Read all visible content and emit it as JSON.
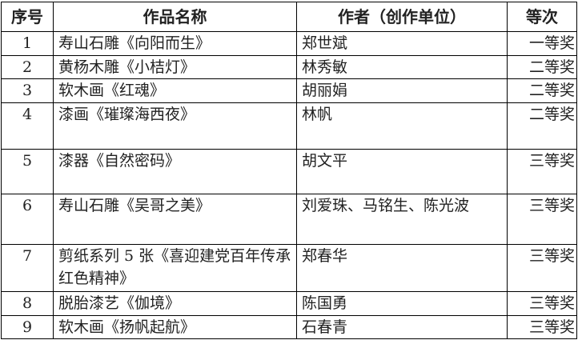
{
  "headers": [
    "序号",
    "作品名称",
    "作者（创作单位）",
    "等次"
  ],
  "rows": [
    {
      "no": "1",
      "title": "寿山石雕《向阳而生》",
      "author": "郑世斌",
      "rank": "一等奖"
    },
    {
      "no": "2",
      "title": "黄杨木雕《小桔灯》",
      "author": "林秀敏",
      "rank": "二等奖"
    },
    {
      "no": "3",
      "title": "软木画《红魂》",
      "author": "胡丽娟",
      "rank": "二等奖"
    },
    {
      "no": "4",
      "title": "漆画《璀璨海西夜》",
      "author": "林帆",
      "rank": "二等奖"
    },
    {
      "no": "5",
      "title": "漆器《自然密码》",
      "author": "胡文平",
      "rank": "三等奖"
    },
    {
      "no": "6",
      "title": "寿山石雕《吴哥之美》",
      "author": "刘爱珠、马铭生、陈光波",
      "rank": "三等奖"
    },
    {
      "no": "7",
      "title": "剪纸系列 5 张《喜迎建党百年传承红色精神》",
      "author": "郑春华",
      "rank": "三等奖"
    },
    {
      "no": "8",
      "title": "脱胎漆艺《伽境》",
      "author": "陈国勇",
      "rank": "三等奖"
    },
    {
      "no": "9",
      "title": "软木画《扬帆起航》",
      "author": "石春青",
      "rank": "三等奖"
    }
  ]
}
